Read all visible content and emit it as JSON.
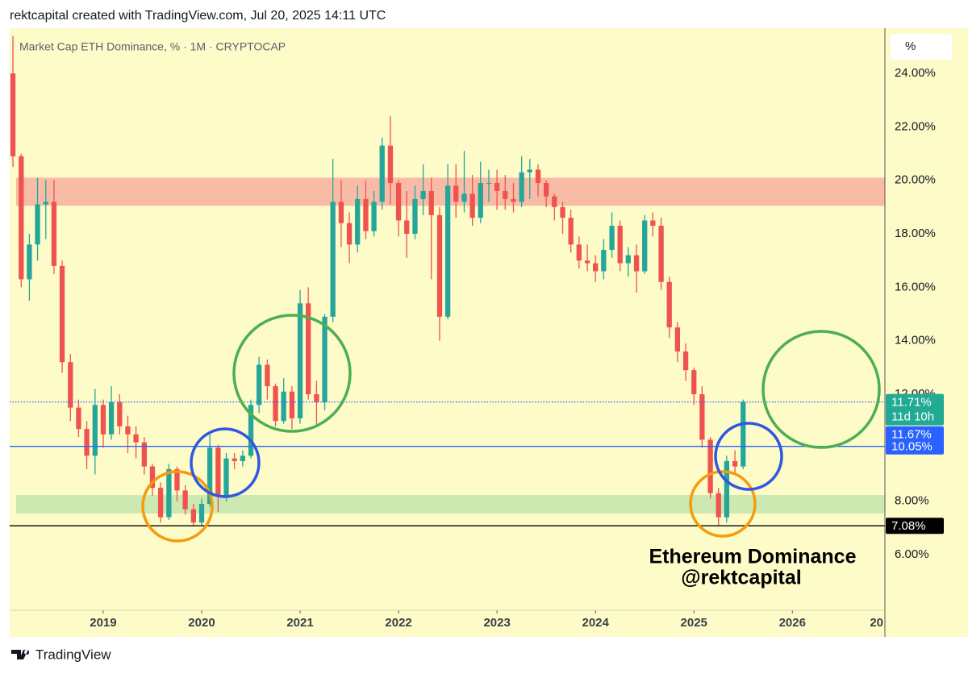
{
  "header": "rektcapital created with TradingView.com, Jul 20, 2025 14:11 UTC",
  "axis_unit": "%",
  "annotation": {
    "title": "Ethereum Dominance",
    "handle": "@rektcapital"
  },
  "footer": "TradingView",
  "chart_data": {
    "type": "candlestick",
    "title": "Market Cap ETH Dominance, % · 1M · CRYPTOCAP",
    "x": [
      2018.083,
      2018.167,
      2018.25,
      2018.333,
      2018.417,
      2018.5,
      2018.583,
      2018.667,
      2018.75,
      2018.833,
      2018.917,
      2019,
      2019.083,
      2019.167,
      2019.25,
      2019.333,
      2019.417,
      2019.5,
      2019.583,
      2019.667,
      2019.75,
      2019.833,
      2019.917,
      2020,
      2020.083,
      2020.167,
      2020.25,
      2020.333,
      2020.417,
      2020.5,
      2020.583,
      2020.667,
      2020.75,
      2020.833,
      2020.917,
      2021,
      2021.083,
      2021.167,
      2021.25,
      2021.333,
      2021.417,
      2021.5,
      2021.583,
      2021.667,
      2021.75,
      2021.833,
      2021.917,
      2022,
      2022.083,
      2022.167,
      2022.25,
      2022.333,
      2022.417,
      2022.5,
      2022.583,
      2022.667,
      2022.75,
      2022.833,
      2022.917,
      2023,
      2023.083,
      2023.167,
      2023.25,
      2023.333,
      2023.417,
      2023.5,
      2023.583,
      2023.667,
      2023.75,
      2023.833,
      2023.917,
      2024,
      2024.083,
      2024.167,
      2024.25,
      2024.333,
      2024.417,
      2024.5,
      2024.583,
      2024.667,
      2024.75,
      2024.833,
      2024.917,
      2025,
      2025.083,
      2025.167,
      2025.25,
      2025.333,
      2025.417,
      2025.5
    ],
    "open": [
      24.0,
      20.9,
      16.3,
      17.6,
      19.1,
      19.2,
      16.8,
      13.2,
      11.5,
      10.7,
      9.7,
      11.6,
      10.5,
      11.7,
      10.8,
      10.5,
      10.2,
      9.3,
      8.5,
      7.4,
      9.2,
      8.4,
      7.7,
      7.2,
      7.9,
      10.0,
      8.2,
      9.6,
      9.5,
      9.7,
      11.6,
      13.1,
      12.3,
      11.0,
      12.1,
      11.1,
      15.4,
      12.0,
      11.7,
      14.9,
      19.2,
      18.4,
      17.6,
      19.3,
      18.1,
      19.2,
      21.3,
      19.9,
      18.5,
      18.0,
      19.3,
      19.6,
      18.7,
      14.9,
      19.8,
      19.2,
      19.5,
      18.6,
      19.9,
      19.9,
      19.6,
      19.3,
      19.2,
      20.3,
      20.4,
      19.9,
      19.4,
      19.0,
      18.6,
      17.6,
      17.0,
      16.9,
      16.6,
      17.4,
      18.3,
      16.9,
      17.2,
      16.6,
      18.5,
      18.3,
      16.2,
      14.5,
      13.6,
      12.9,
      12.0,
      10.3,
      8.3,
      7.4,
      9.5,
      9.3
    ],
    "high": [
      25.4,
      21.0,
      18.0,
      20.1,
      20.0,
      20.0,
      17.0,
      13.5,
      11.8,
      11.0,
      12.2,
      11.8,
      12.3,
      12.0,
      11.2,
      10.8,
      10.4,
      9.4,
      8.7,
      9.4,
      9.3,
      8.6,
      7.9,
      8.1,
      10.5,
      10.1,
      9.8,
      9.8,
      9.9,
      11.8,
      13.4,
      13.3,
      12.4,
      12.6,
      12.3,
      15.9,
      16.0,
      12.5,
      15.0,
      20.8,
      20.0,
      18.8,
      19.8,
      20.0,
      19.6,
      21.6,
      22.4,
      20.0,
      19.6,
      19.8,
      20.6,
      20.1,
      19.0,
      20.6,
      20.6,
      21.1,
      20.2,
      20.7,
      20.4,
      20.4,
      20.2,
      19.9,
      20.9,
      20.8,
      20.6,
      20.0,
      19.5,
      19.2,
      18.9,
      17.9,
      17.6,
      17.2,
      17.8,
      18.8,
      18.5,
      17.5,
      17.6,
      18.7,
      18.8,
      18.6,
      16.4,
      14.7,
      13.9,
      13.0,
      12.3,
      10.4,
      8.5,
      9.7,
      9.9,
      11.8
    ],
    "low": [
      20.5,
      16.0,
      15.5,
      17.0,
      17.8,
      16.5,
      12.8,
      11.0,
      10.4,
      9.2,
      9.0,
      10.0,
      10.3,
      10.5,
      9.8,
      9.6,
      9.0,
      8.2,
      7.2,
      7.3,
      8.0,
      7.5,
      7.1,
      7.1,
      7.8,
      7.6,
      8.0,
      9.2,
      9.3,
      9.6,
      11.3,
      11.8,
      10.8,
      10.9,
      10.7,
      10.9,
      11.8,
      10.8,
      11.4,
      14.7,
      17.5,
      16.9,
      17.3,
      17.8,
      17.9,
      18.9,
      19.1,
      17.9,
      17.1,
      17.8,
      18.7,
      16.3,
      14.0,
      14.8,
      18.6,
      18.8,
      18.3,
      18.4,
      19.2,
      18.9,
      18.9,
      18.8,
      19.0,
      19.3,
      19.4,
      19.0,
      18.5,
      18.0,
      17.3,
      16.7,
      16.6,
      16.2,
      16.3,
      17.1,
      16.6,
      16.4,
      15.8,
      16.5,
      17.9,
      15.9,
      14.1,
      13.2,
      12.5,
      11.6,
      10.0,
      8.1,
      7.08,
      7.2,
      9.0,
      9.2
    ],
    "close": [
      20.9,
      16.3,
      17.6,
      19.1,
      19.2,
      16.8,
      13.2,
      11.5,
      10.7,
      9.7,
      11.6,
      10.5,
      11.7,
      10.8,
      10.5,
      10.2,
      9.3,
      8.5,
      7.4,
      9.2,
      8.4,
      7.7,
      7.2,
      7.9,
      10.0,
      8.2,
      9.6,
      9.5,
      9.7,
      11.6,
      13.1,
      12.3,
      11.0,
      12.1,
      11.1,
      15.4,
      12.0,
      11.7,
      14.9,
      19.2,
      18.4,
      17.6,
      19.3,
      18.1,
      19.2,
      21.3,
      19.9,
      18.5,
      18.0,
      19.3,
      19.6,
      18.7,
      14.9,
      19.8,
      19.2,
      19.5,
      18.6,
      19.9,
      19.9,
      19.6,
      19.3,
      19.2,
      20.3,
      20.4,
      19.9,
      19.4,
      19.0,
      18.6,
      17.6,
      17.0,
      16.9,
      16.6,
      17.4,
      18.3,
      16.9,
      17.2,
      16.6,
      18.5,
      18.3,
      16.2,
      14.5,
      13.6,
      12.9,
      12.0,
      10.3,
      8.3,
      7.4,
      9.5,
      9.3,
      11.71
    ],
    "up_color": "#26a69a",
    "down_color": "#ef5350",
    "xlim": [
      2018.05,
      2026.94
    ],
    "xticks": [
      2019,
      2020,
      2021,
      2022,
      2023,
      2024,
      2025,
      2026,
      {
        "value": 2027,
        "label": "20"
      }
    ],
    "ylim": [
      3.92,
      25.69
    ],
    "yticks": [
      {
        "value": 6,
        "label": "6.00%"
      },
      {
        "value": 8,
        "label": "8.00%"
      },
      {
        "value": 10,
        "label": "10.00%"
      },
      {
        "value": 12,
        "label": "12.00%"
      },
      {
        "value": 14,
        "label": "14.00%"
      },
      {
        "value": 16,
        "label": "16.00%"
      },
      {
        "value": 18,
        "label": "18.00%"
      },
      {
        "value": 20,
        "label": "20.00%"
      },
      {
        "value": 22,
        "label": "22.00%"
      },
      {
        "value": 24,
        "label": "24.00%"
      }
    ],
    "zones": [
      {
        "from": 19.05,
        "to": 20.1,
        "color": "#f8bca6"
      },
      {
        "from": 7.54,
        "to": 8.23,
        "color": "#cde8b0"
      }
    ],
    "price_tags": [
      {
        "value": 11.71,
        "label": "11.71%",
        "sub_label": "11d 10h",
        "color": "#22ab94",
        "line_color": "#2962ff",
        "line_style": "dotted"
      },
      {
        "value": 10.05,
        "label": "10.05%",
        "top_label": "11.67%",
        "color": "#2962ff",
        "line_color": "#2962ff",
        "line_style": "solid"
      },
      {
        "value": 7.08,
        "label": "7.08%",
        "color": "#000000",
        "line_color": "#000000",
        "line_style": "solid"
      }
    ]
  }
}
